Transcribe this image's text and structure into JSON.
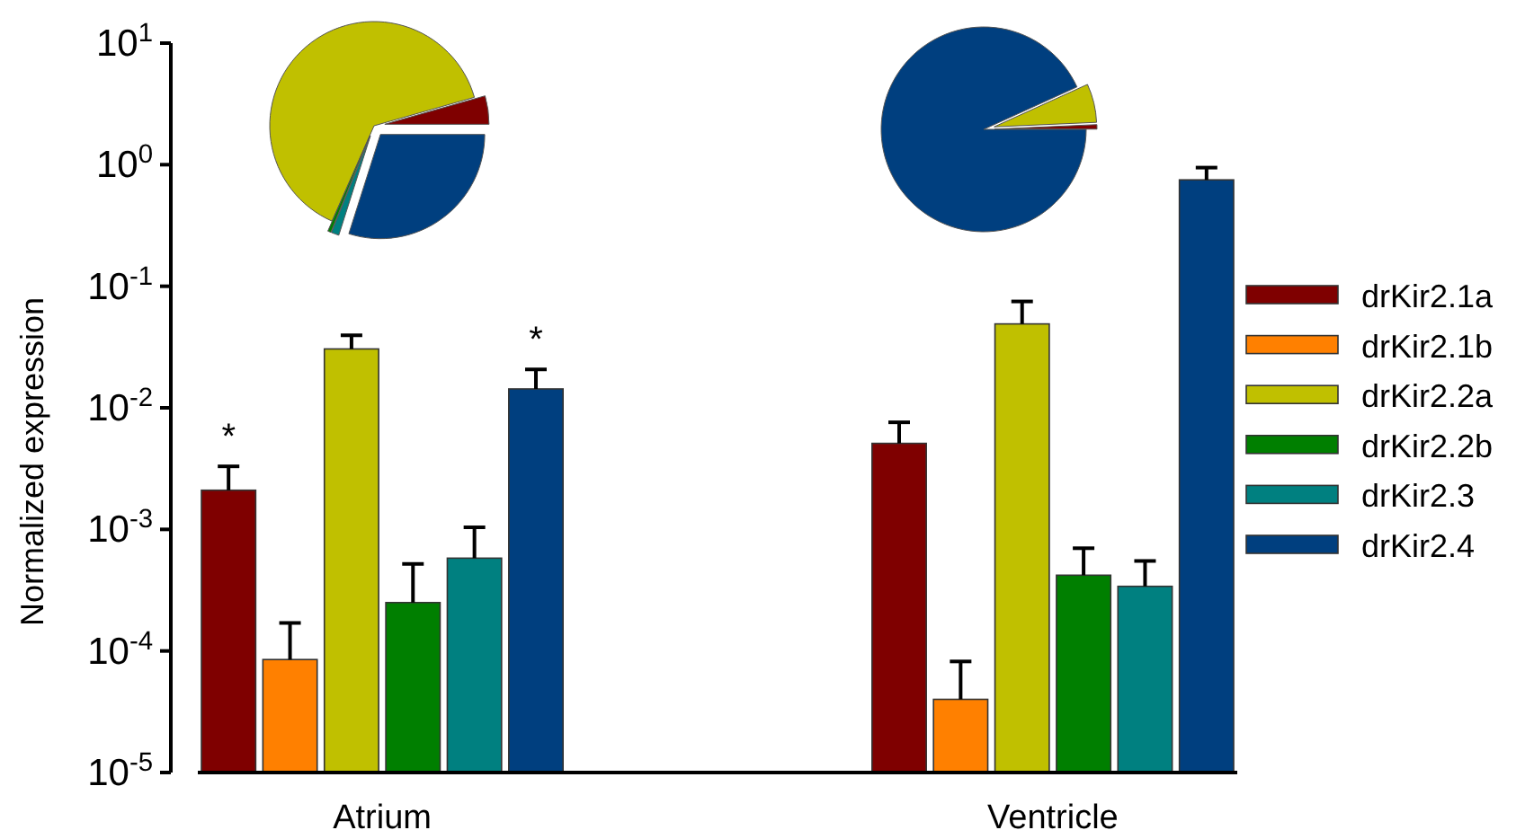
{
  "chart_data": [
    {
      "type": "bar",
      "ylabel": "Normalized expression",
      "categories": [
        "Atrium",
        "Ventricle"
      ],
      "log": true,
      "ylim": [
        1e-05,
        10
      ],
      "yticks": [
        {
          "value": 1e-05,
          "label": "10$^{-5}$"
        },
        {
          "value": 0.0001,
          "label": "10$^{-4}$"
        },
        {
          "value": 0.001,
          "label": "10$^{-3}$"
        },
        {
          "value": 0.01,
          "label": "10$^{-2}$"
        },
        {
          "value": 0.1,
          "label": "10$^{-1}$"
        },
        {
          "value": 1,
          "label": "10$^{0}$"
        },
        {
          "value": 10,
          "label": "10$^{1}$"
        }
      ],
      "legend": "right",
      "grid": false,
      "series": [
        {
          "name": "drKir2.1a",
          "color": "#7f0000",
          "values": [
            0.0021,
            0.0051
          ],
          "errors": [
            [
              0.0021,
              0.0033
            ],
            [
              0.0051,
              0.0076
            ]
          ]
        },
        {
          "name": "drKir2.1b",
          "color": "#ff8000",
          "values": [
            8.5e-05,
            4e-05
          ],
          "errors": [
            [
              8.5e-05,
              0.00017
            ],
            [
              4e-05,
              8.2e-05
            ]
          ]
        },
        {
          "name": "drKir2.2a",
          "color": "#c0c000",
          "values": [
            0.0305,
            0.049
          ],
          "errors": [
            [
              0.0305,
              0.0395
            ],
            [
              0.049,
              0.075
            ]
          ]
        },
        {
          "name": "drKir2.2b",
          "color": "#007f00",
          "values": [
            0.00025,
            0.00042
          ],
          "errors": [
            [
              0.00025,
              0.00052
            ],
            [
              0.00042,
              0.0007
            ]
          ]
        },
        {
          "name": "drKir2.3",
          "color": "#008080",
          "values": [
            0.00058,
            0.00034
          ],
          "errors": [
            [
              0.00058,
              0.00104
            ],
            [
              0.00034,
              0.00055
            ]
          ]
        },
        {
          "name": "drKir2.4",
          "color": "#003f7f",
          "values": [
            0.0143,
            0.75
          ],
          "errors": [
            [
              0.0143,
              0.0207
            ],
            [
              0.75,
              0.946
            ]
          ]
        }
      ],
      "annotations": [
        "*",
        "*"
      ]
    },
    {
      "type": "pie",
      "categories": [
        null,
        null,
        null,
        null,
        null,
        null
      ],
      "values": [
        4.4,
        null,
        64.0,
        0.5,
        1.2,
        29.9
      ],
      "colors": [
        "#7f0000",
        null,
        "#c0c000",
        "#007f00",
        "#008080",
        "#003f7f"
      ]
    },
    {
      "type": "pie",
      "categories": [
        null,
        null,
        null,
        null,
        null,
        null
      ],
      "values": [
        0.7,
        null,
        6.1,
        null,
        null,
        93.2
      ],
      "colors": [
        "#7f0000",
        null,
        "#c0c000",
        null,
        null,
        "#003f7f"
      ]
    }
  ]
}
